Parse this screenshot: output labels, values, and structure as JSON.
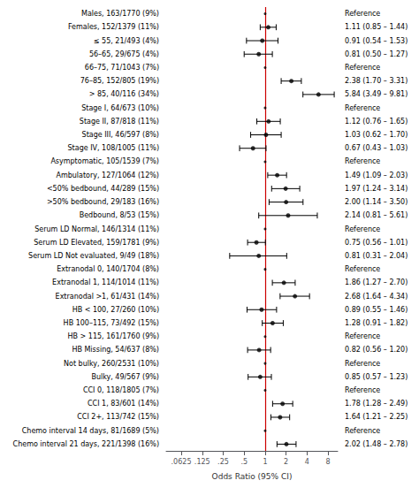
{
  "chart_data": {
    "type": "forest",
    "categories": [
      "Males, 163/1770 (9%)",
      "Females, 152/1379 (11%)",
      "≤ 55, 21/493 (4%)",
      "56–65, 29/675 (4%)",
      "66–75, 71/1043 (7%)",
      "76–85, 152/805 (19%)",
      "> 85, 40/116 (34%)",
      "Stage I, 64/673 (10%)",
      "Stage II, 87/818 (11%)",
      "Stage III, 46/597 (8%)",
      "Stage IV, 108/1005 (11%)",
      "Asymptomatic, 105/1539 (7%)",
      "Ambulatory, 127/1064 (12%)",
      "<50% bedbound, 44/289 (15%)",
      ">50% bedbound, 29/183 (16%)",
      "Bedbound, 8/53 (15%)",
      "Serum LD Normal, 146/1314 (11%)",
      "Serum LD Elevated, 159/1781 (9%)",
      "Serum LD Not evaluated, 9/49 (18%)",
      "Extranodal 0, 140/1704 (8%)",
      "Extranodal 1, 114/1014 (11%)",
      "Extranodal >1, 61/431 (14%)",
      "HB < 100, 27/260 (10%)",
      "HB 100–115, 73/492 (15%)",
      "HB > 115, 161/1760 (9%)",
      "HB Missing, 54/637 (8%)",
      "Not bulky, 260/2531 (10%)",
      "Bulky, 49/567 (9%)",
      "CCI 0, 118/1805 (7%)",
      "CCI 1, 83/601 (14%)",
      "CCI 2+, 113/742 (15%)",
      "Chemo interval 14 days, 81/1689 (5%)",
      "Chemo interval 21 days, 221/1398 (16%)"
    ],
    "values": [
      null,
      1.11,
      0.91,
      0.81,
      null,
      2.38,
      5.84,
      null,
      1.12,
      1.03,
      0.67,
      null,
      1.49,
      1.97,
      2.0,
      2.14,
      null,
      0.75,
      0.81,
      null,
      1.86,
      2.68,
      0.89,
      1.28,
      null,
      0.82,
      null,
      0.85,
      null,
      1.78,
      1.64,
      null,
      2.02
    ],
    "lower": [
      null,
      0.85,
      0.54,
      0.5,
      null,
      1.7,
      3.49,
      null,
      0.76,
      0.62,
      0.43,
      null,
      1.09,
      1.24,
      1.14,
      0.81,
      null,
      0.56,
      0.31,
      null,
      1.27,
      1.64,
      0.55,
      0.91,
      null,
      0.56,
      null,
      0.57,
      null,
      1.28,
      1.21,
      null,
      1.48
    ],
    "upper": [
      null,
      1.44,
      1.53,
      1.27,
      null,
      3.31,
      9.81,
      null,
      1.65,
      1.7,
      1.03,
      null,
      2.03,
      3.14,
      3.5,
      5.61,
      null,
      1.01,
      2.04,
      null,
      2.7,
      4.34,
      1.46,
      1.82,
      null,
      1.2,
      null,
      1.23,
      null,
      2.49,
      2.25,
      null,
      2.78
    ],
    "value_labels": [
      "Reference",
      "1.11 (0.85 – 1.44)",
      "0.91 (0.54 – 1.53)",
      "0.81 (0.50 – 1.27)",
      "Reference",
      "2.38 (1.70 – 3.31)",
      "5.84 (3.49 – 9.81)",
      "Reference",
      "1.12 (0.76 – 1.65)",
      "1.03 (0.62 – 1.70)",
      "0.67 (0.43 – 1.03)",
      "Reference",
      "1.49 (1.09 – 2.03)",
      "1.97 (1.24 – 3.14)",
      "2.00 (1.14 – 3.50)",
      "2.14 (0.81 – 5.61)",
      "Reference",
      "0.75 (0.56 – 1.01)",
      "0.81 (0.31 – 2.04)",
      "Reference",
      "1.86 (1.27 – 2.70)",
      "2.68 (1.64 – 4.34)",
      "0.89 (0.55 – 1.46)",
      "1.28 (0.91 – 1.82)",
      "Reference",
      "0.82 (0.56 – 1.20)",
      "Reference",
      "0.85 (0.57 – 1.23)",
      "Reference",
      "1.78 (1.28 – 2.49)",
      "1.64 (1.21 – 2.25)",
      "Reference",
      "2.02 (1.48 – 2.78)"
    ],
    "reference_line": {
      "value": 1,
      "color": "#cc0000"
    },
    "xlabel": "Odds Ratio (95% CI)",
    "xlim": [
      0.038,
      11.0
    ],
    "xticks": [
      {
        "value": 0.0625,
        "label": ".0625"
      },
      {
        "value": 0.125,
        "label": ".125"
      },
      {
        "value": 0.25,
        "label": ".25"
      },
      {
        "value": 0.5,
        "label": ".5"
      },
      1,
      2,
      4,
      8
    ],
    "log": "x",
    "color": "black",
    "grid": false
  }
}
